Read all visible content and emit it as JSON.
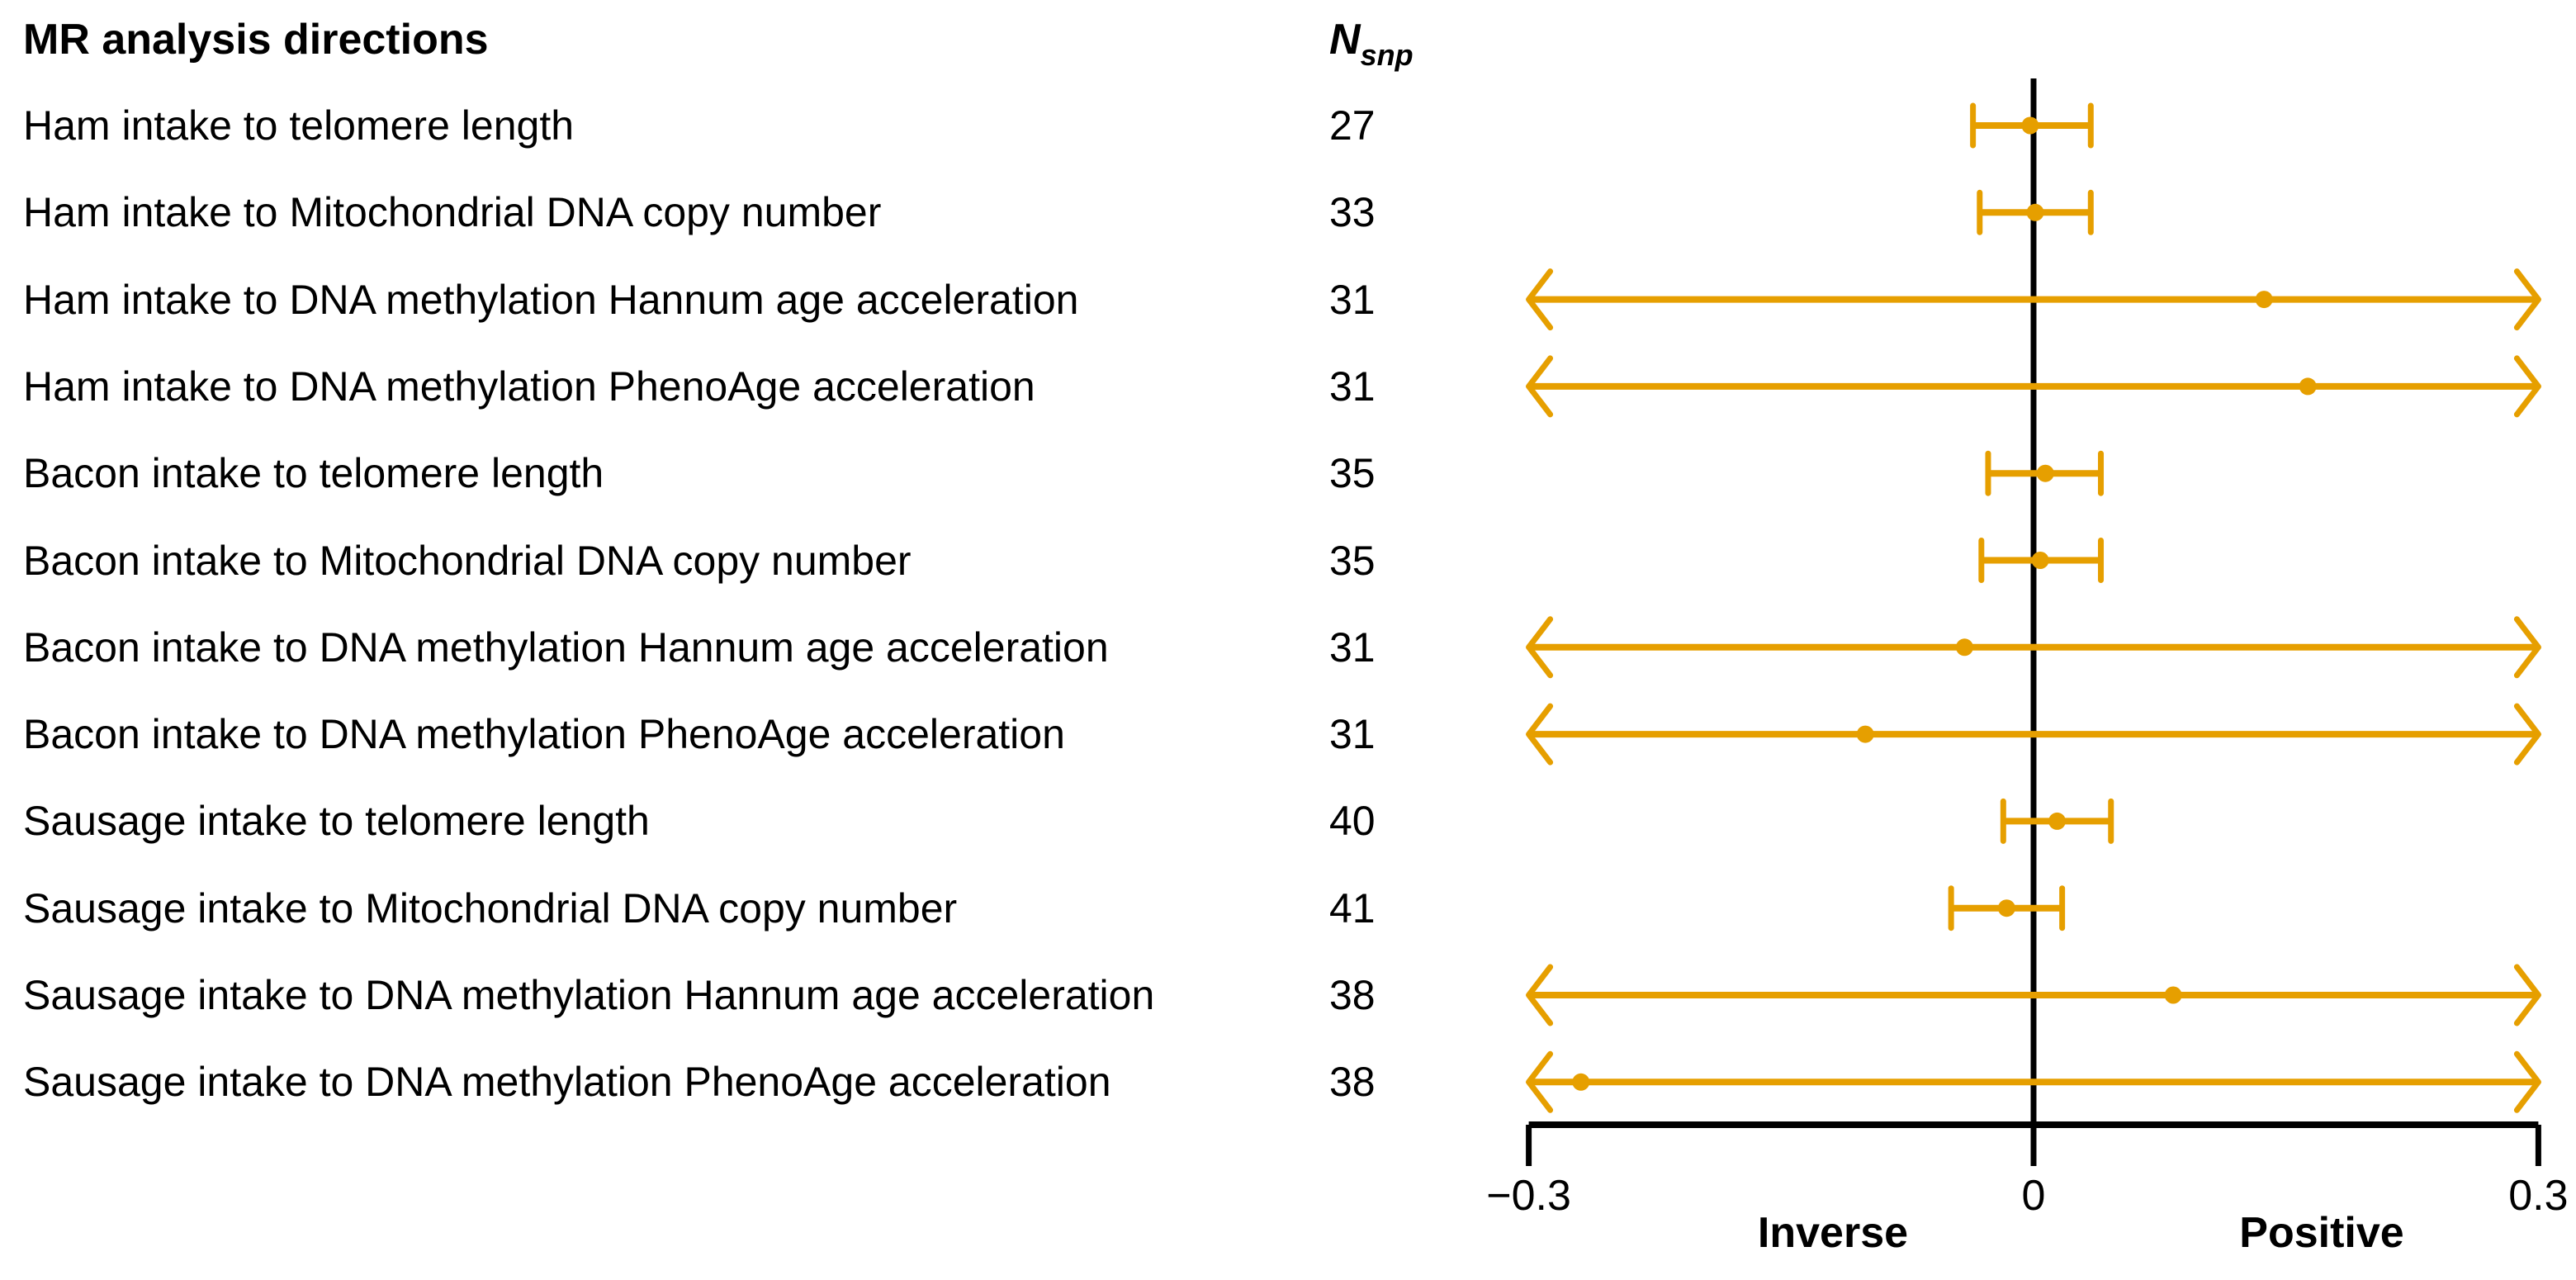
{
  "title": "MR analysis directions",
  "n_header": {
    "main": "N",
    "sub": "snp"
  },
  "colors": {
    "accent": "#E69F00",
    "axis": "#000000",
    "background": "#FFFFFF",
    "text": "#000000"
  },
  "axis": {
    "min": -0.3,
    "max": 0.3,
    "ticks": [
      {
        "value": -0.3,
        "label": "−0.3"
      },
      {
        "value": 0,
        "label": "0"
      },
      {
        "value": 0.3,
        "label": "0.3"
      }
    ],
    "direction_left": "Inverse",
    "direction_right": "Positive",
    "reference_value": 0
  },
  "chart_data": {
    "type": "forest",
    "title": "MR analysis directions",
    "xlabel_left": "Inverse",
    "xlabel_right": "Positive",
    "xlim": [
      -0.3,
      0.3
    ],
    "columns": [
      "MR analysis directions",
      "N_snp",
      "estimate",
      "ci_low",
      "ci_high"
    ],
    "rows": [
      {
        "label": "Ham intake to telomere length",
        "n_snp": 27,
        "estimate": -0.002,
        "ci_low": -0.036,
        "ci_high": 0.034,
        "truncated": false
      },
      {
        "label": "Ham intake to Mitochondrial DNA copy number",
        "n_snp": 33,
        "estimate": 0.001,
        "ci_low": -0.032,
        "ci_high": 0.034,
        "truncated": false
      },
      {
        "label": "Ham intake to DNA methylation Hannum age acceleration",
        "n_snp": 31,
        "estimate": 0.137,
        "ci_low": -0.3,
        "ci_high": 0.3,
        "truncated": true
      },
      {
        "label": "Ham intake to DNA methylation PhenoAge acceleration",
        "n_snp": 31,
        "estimate": 0.163,
        "ci_low": -0.3,
        "ci_high": 0.3,
        "truncated": true
      },
      {
        "label": "Bacon intake to telomere length",
        "n_snp": 35,
        "estimate": 0.007,
        "ci_low": -0.027,
        "ci_high": 0.04,
        "truncated": false
      },
      {
        "label": "Bacon intake to Mitochondrial DNA copy number",
        "n_snp": 35,
        "estimate": 0.004,
        "ci_low": -0.031,
        "ci_high": 0.04,
        "truncated": false
      },
      {
        "label": "Bacon intake to DNA methylation Hannum age acceleration",
        "n_snp": 31,
        "estimate": -0.041,
        "ci_low": -0.3,
        "ci_high": 0.3,
        "truncated": true
      },
      {
        "label": "Bacon intake to DNA methylation PhenoAge acceleration",
        "n_snp": 31,
        "estimate": -0.1,
        "ci_low": -0.3,
        "ci_high": 0.3,
        "truncated": true
      },
      {
        "label": "Sausage intake to telomere length",
        "n_snp": 40,
        "estimate": 0.014,
        "ci_low": -0.018,
        "ci_high": 0.046,
        "truncated": false
      },
      {
        "label": "Sausage intake to Mitochondrial DNA copy number",
        "n_snp": 41,
        "estimate": -0.016,
        "ci_low": -0.049,
        "ci_high": 0.017,
        "truncated": false
      },
      {
        "label": "Sausage intake to DNA methylation Hannum age acceleration",
        "n_snp": 38,
        "estimate": 0.083,
        "ci_low": -0.3,
        "ci_high": 0.3,
        "truncated": true
      },
      {
        "label": "Sausage intake to DNA methylation PhenoAge acceleration",
        "n_snp": 38,
        "estimate": -0.269,
        "ci_low": -0.3,
        "ci_high": 0.3,
        "truncated": true
      }
    ]
  }
}
